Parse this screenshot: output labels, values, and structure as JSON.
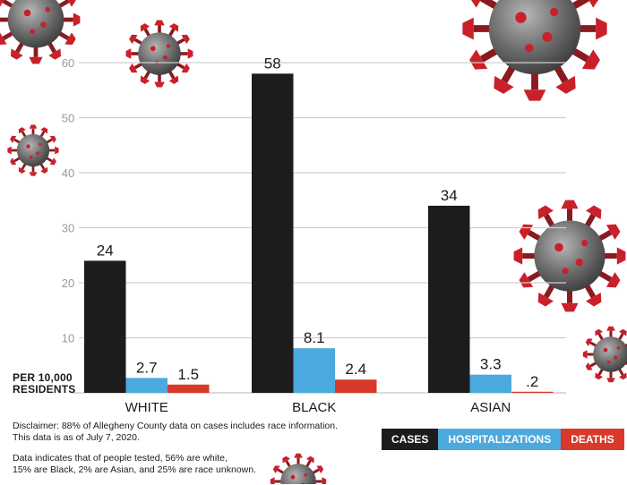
{
  "chart_data": {
    "type": "bar",
    "categories": [
      "WHITE",
      "BLACK",
      "ASIAN"
    ],
    "series": [
      {
        "name": "CASES",
        "values": [
          24,
          58,
          34
        ],
        "labels": [
          "24",
          "58",
          "34"
        ]
      },
      {
        "name": "HOSPITALIZATIONS",
        "values": [
          2.7,
          8.1,
          3.3
        ],
        "labels": [
          "2.7",
          "8.1",
          "3.3"
        ]
      },
      {
        "name": "DEATHS",
        "values": [
          1.5,
          2.4,
          0.2
        ],
        "labels": [
          "1.5",
          "2.4",
          ".2"
        ]
      }
    ],
    "yticks": [
      10,
      20,
      30,
      40,
      50,
      60
    ],
    "ylim": [
      0,
      60
    ],
    "ylabel": "PER 10,000 RESIDENTS",
    "grid": true,
    "legend": "bottom-right"
  },
  "colors": {
    "cases": "#1e1b1c",
    "hospitalizations": "#4ba9de",
    "deaths": "#d8392b",
    "grid": "#cfcfcf",
    "virus": "#c9202a"
  },
  "ylabel_lines": [
    "PER 10,000",
    "RESIDENTS"
  ],
  "notes": {
    "disclaimer_line1": "Disclaimer: 88% of Allegheny County data on cases includes race information.",
    "disclaimer_line2": "This data is as of July 7, 2020.",
    "tested_line1": "Data indicates that of people tested, 56% are white,",
    "tested_line2": "15% are Black, 2% are Asian, and 25% are race unknown."
  },
  "decorations": {
    "icon": "coronavirus-icon"
  }
}
